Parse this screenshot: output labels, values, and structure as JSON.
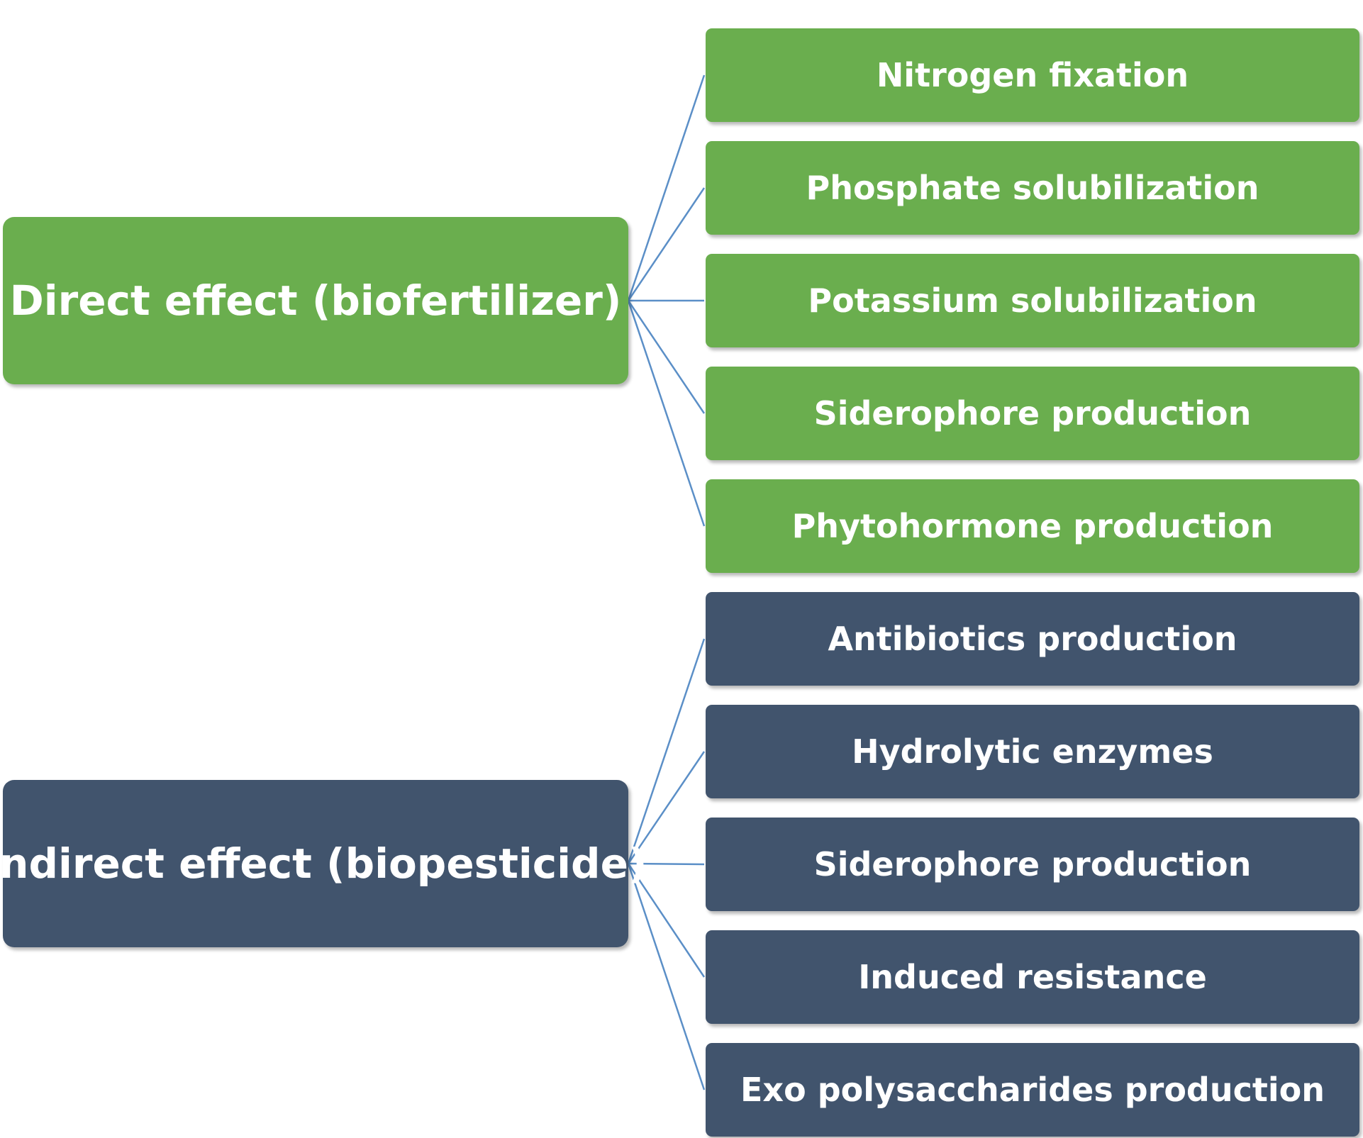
{
  "colors": {
    "direct": "#6aae4e",
    "indirect": "#41546d",
    "connector": "#5b8fc7",
    "text": "#ffffff"
  },
  "groups": [
    {
      "id": "direct",
      "label": "Direct effect (biofertilizer)",
      "items": [
        "Nitrogen fixation",
        "Phosphate solubilization",
        "Potassium solubilization",
        "Siderophore production",
        "Phytohormone production"
      ]
    },
    {
      "id": "indirect",
      "label": "Indirect effect (biopesticide)",
      "items": [
        "Antibiotics production",
        "Hydrolytic enzymes",
        "Siderophore production",
        "Induced resistance",
        "Exo polysaccharides production"
      ]
    }
  ]
}
